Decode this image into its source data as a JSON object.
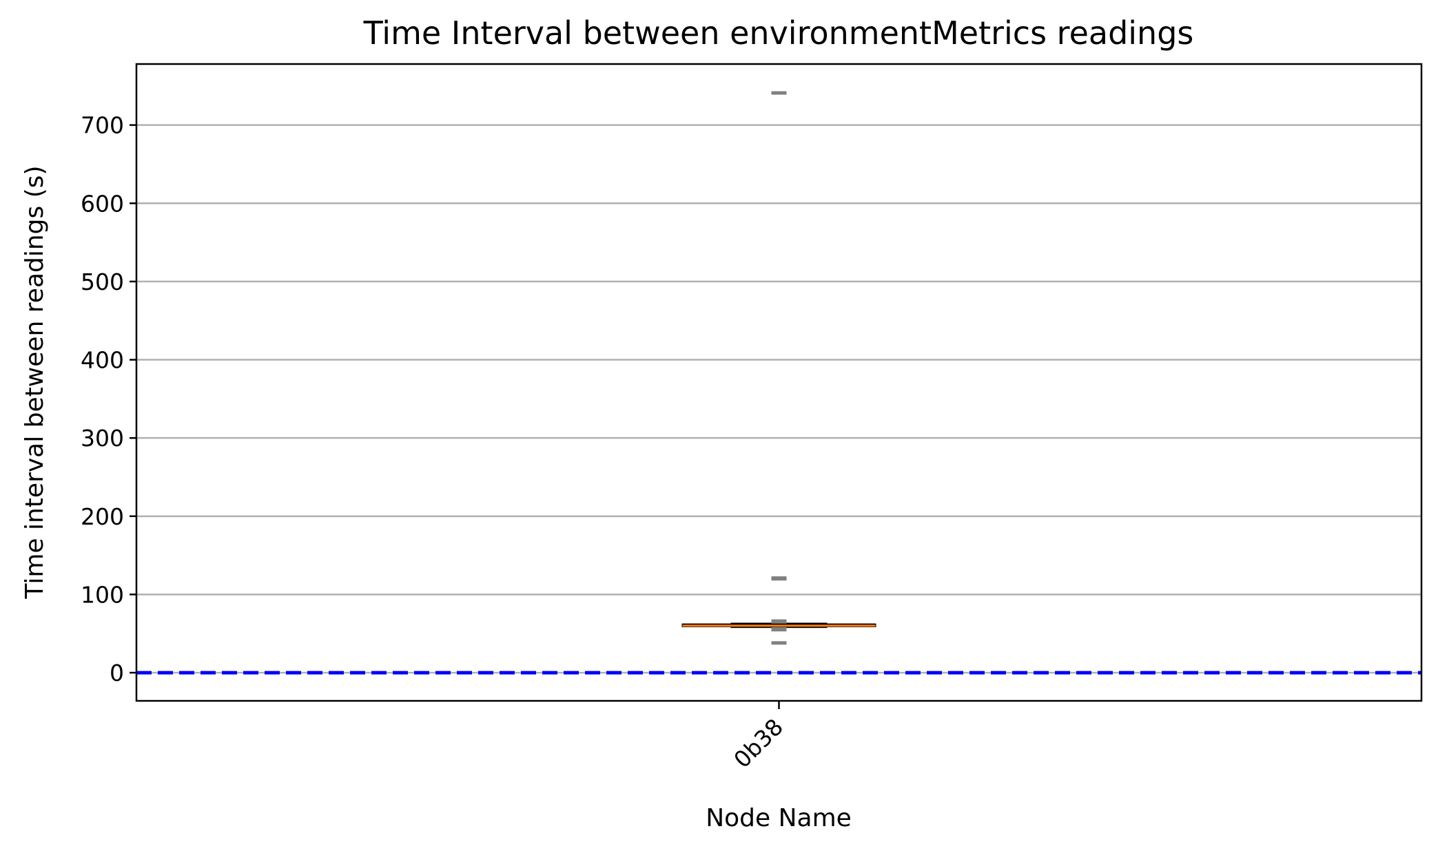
{
  "chart_data": {
    "type": "box",
    "title": "Time Interval between environmentMetrics readings",
    "xlabel": "Node Name",
    "ylabel": "Time interval between readings (s)",
    "ylim": [
      -36,
      778
    ],
    "yticks": [
      0,
      100,
      200,
      300,
      400,
      500,
      600,
      700
    ],
    "grid": "y",
    "categories": [
      "0b38"
    ],
    "x_tick_rotation": 45,
    "boxes": [
      {
        "name": "0b38",
        "whislo": 58,
        "q1": 59,
        "median": 60,
        "q3": 62,
        "whishi": 63,
        "fliers": [
          741,
          121,
          120,
          66,
          65,
          56,
          55,
          38
        ]
      }
    ],
    "reference_lines": [
      {
        "y": 0,
        "style": "dashed",
        "color": "#0000ff"
      }
    ],
    "colors": {
      "box_fill": "#ff7f0e",
      "median": "#ff7f0e",
      "flier": "#808080",
      "grid": "#b0b0b0",
      "reference": "#0000ff"
    }
  }
}
